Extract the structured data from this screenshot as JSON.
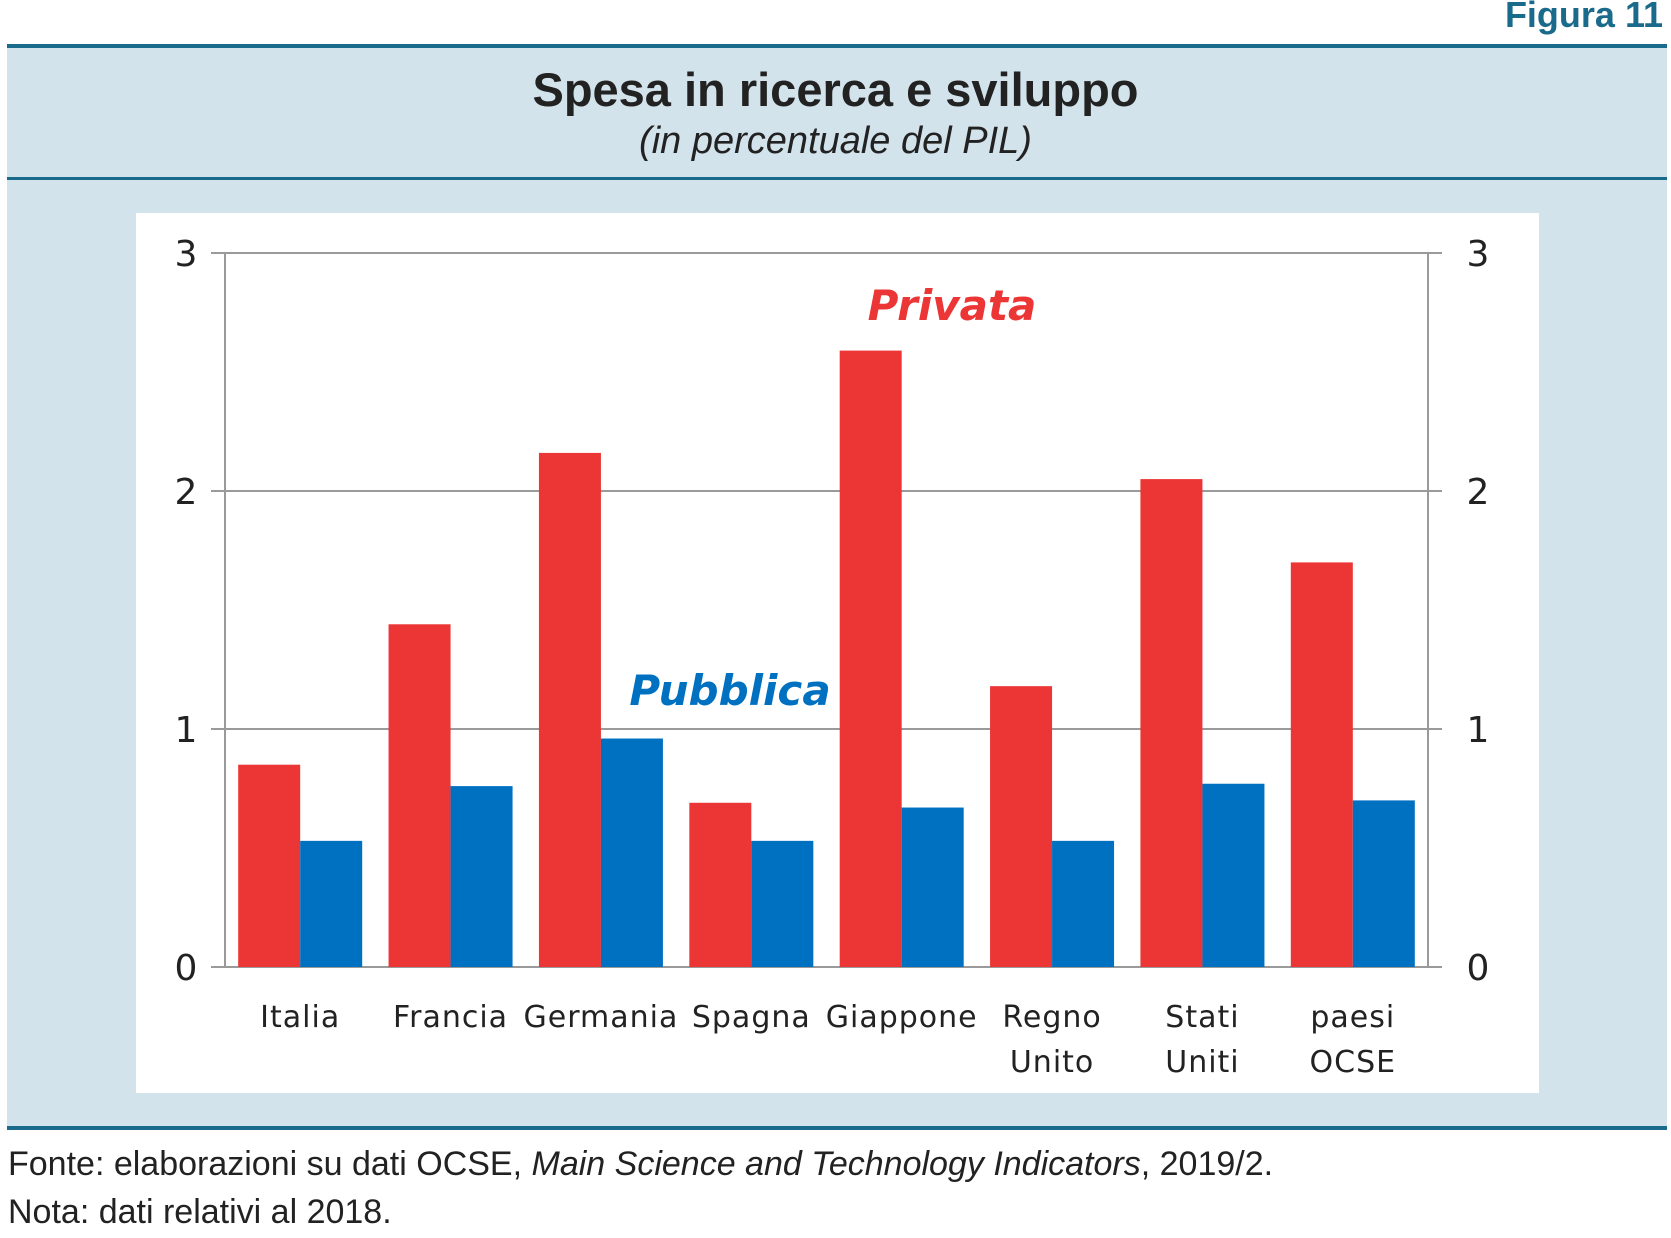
{
  "figure_label": "Figura 11",
  "chart_data": {
    "type": "bar",
    "title": "Spesa in ricerca e sviluppo",
    "subtitle": "(in percentuale del PIL)",
    "categories": [
      [
        "Italia"
      ],
      [
        "Francia"
      ],
      [
        "Germania"
      ],
      [
        "Spagna"
      ],
      [
        "Giappone"
      ],
      [
        "Regno",
        "Unito"
      ],
      [
        "Stati",
        "Uniti"
      ],
      [
        "paesi",
        "OCSE"
      ]
    ],
    "series": [
      {
        "name": "Privata",
        "color": "#ec3535",
        "values": [
          0.85,
          1.44,
          2.16,
          0.69,
          2.59,
          1.18,
          2.05,
          1.7
        ]
      },
      {
        "name": "Pubblica",
        "color": "#0070c0",
        "values": [
          0.53,
          0.76,
          0.96,
          0.53,
          0.67,
          0.53,
          0.77,
          0.7
        ]
      }
    ],
    "ylim": [
      0,
      3
    ],
    "yticks": [
      "0",
      "1",
      "2",
      "3"
    ],
    "secondary_yticks": [
      "0",
      "1",
      "2",
      "3"
    ],
    "grid": true,
    "legend": "inline labels"
  },
  "footer": {
    "source_prefix": "Fonte: elaborazioni su dati OCSE, ",
    "source_title": "Main Science and Technology Indicators",
    "source_suffix": ", 2019/2.",
    "note": "Nota: dati relativi al 2018."
  },
  "colors": {
    "accent": "#1a6a8c",
    "panel": "#d2e3ec"
  }
}
